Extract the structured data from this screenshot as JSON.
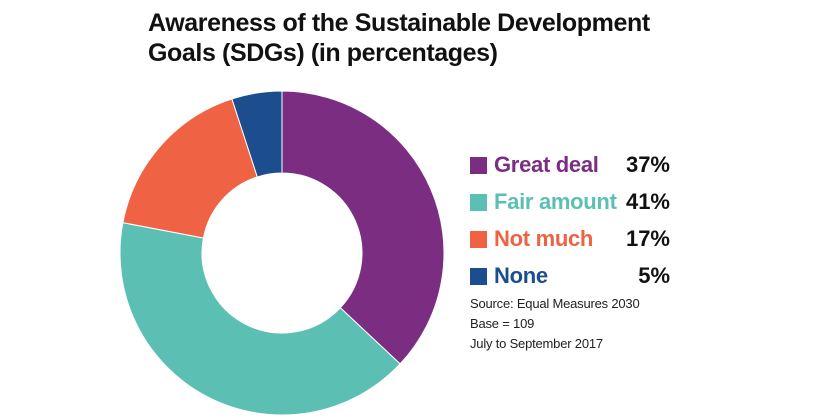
{
  "title_lines": [
    "Awareness of the Sustainable Development",
    "Goals (SDGs) (in percentages)"
  ],
  "chart_data": {
    "type": "pie",
    "donut": true,
    "title": "Awareness of the Sustainable Development Goals (SDGs) (in percentages)",
    "legend_position": "right",
    "slices": [
      {
        "label": "Great deal",
        "value": 37,
        "display": "37%",
        "color": "#7B2D82"
      },
      {
        "label": "Fair amount",
        "value": 41,
        "display": "41%",
        "color": "#5BBFB3"
      },
      {
        "label": "Not much",
        "value": 17,
        "display": "17%",
        "color": "#EF6243"
      },
      {
        "label": "None",
        "value": 5,
        "display": "5%",
        "color": "#1C4D8F"
      }
    ]
  },
  "source": {
    "line1": "Source:  Equal Measures 2030",
    "line2": "Base = 109",
    "line3": "July to September 2017"
  }
}
